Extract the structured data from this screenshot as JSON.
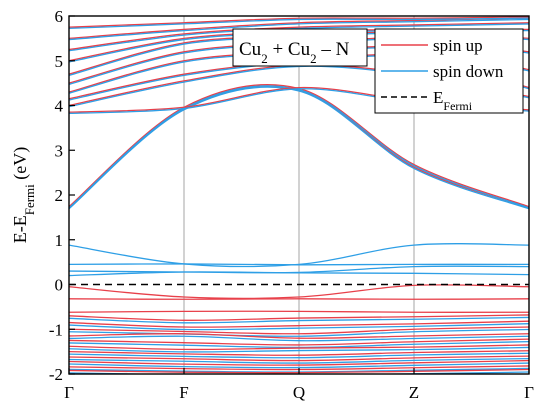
{
  "chart_data": {
    "type": "line",
    "title": "",
    "ylabel": {
      "main": "E-E",
      "sub": "Fermi",
      "unit": " (eV)"
    },
    "ylim": [
      -2,
      6
    ],
    "yticks": [
      -2,
      -1,
      0,
      1,
      2,
      3,
      4,
      5,
      6
    ],
    "xlim": [
      0,
      4
    ],
    "x_ticks": [
      {
        "x": 0,
        "label": "Γ"
      },
      {
        "x": 1,
        "label": "F"
      },
      {
        "x": 2,
        "label": "Q"
      },
      {
        "x": 3,
        "label": "Z"
      },
      {
        "x": 4,
        "label": "Γ"
      }
    ],
    "annotation": {
      "parts": [
        "Cu",
        "2",
        " + Cu",
        "2",
        " – N"
      ]
    },
    "legend": {
      "placement": "top-right",
      "entries": [
        {
          "label": "spin up",
          "sub": "",
          "color": "#e8404a",
          "style": "solid"
        },
        {
          "label": "spin down",
          "sub": "",
          "color": "#2e9fe6",
          "style": "solid"
        },
        {
          "label": "E",
          "sub": "Fermi",
          "color": "#000000",
          "style": "dashed"
        }
      ]
    },
    "fermi_level": 0,
    "series_colors": {
      "spin_up": "#e8404a",
      "spin_down": "#2e9fe6"
    },
    "bands": {
      "both_spins": [
        [
          1.72,
          3.93,
          4.35,
          2.62,
          1.72
        ],
        [
          1.74,
          3.96,
          4.38,
          2.68,
          1.74
        ],
        [
          3.85,
          3.96,
          4.4,
          4.1,
          3.9
        ],
        [
          4.0,
          4.55,
          4.9,
          4.7,
          4.2
        ],
        [
          4.15,
          4.7,
          5.0,
          5.1,
          4.4
        ],
        [
          4.3,
          5.0,
          5.2,
          5.3,
          4.8
        ],
        [
          4.5,
          5.2,
          5.4,
          5.5,
          5.2
        ],
        [
          4.7,
          5.4,
          5.55,
          5.65,
          5.5
        ],
        [
          5.0,
          5.5,
          5.65,
          5.7,
          5.7
        ],
        [
          5.25,
          5.6,
          5.75,
          5.8,
          5.85
        ],
        [
          5.5,
          5.7,
          5.85,
          5.9,
          5.95
        ],
        [
          5.75,
          5.85,
          5.95,
          5.95,
          5.98
        ]
      ],
      "spin_down": [
        [
          0.88,
          0.46,
          0.45,
          0.88,
          0.88
        ],
        [
          0.45,
          0.46,
          0.44,
          0.45,
          0.45
        ],
        [
          0.3,
          0.28,
          0.27,
          0.4,
          0.4
        ],
        [
          0.2,
          0.28,
          0.26,
          0.25,
          0.22
        ]
      ],
      "spin_up": [
        [
          -0.05,
          -0.28,
          -0.28,
          -0.02,
          -0.05
        ],
        [
          -0.32,
          -0.33,
          -0.32,
          -0.33,
          -0.32
        ],
        [
          -0.62,
          -0.6,
          -0.6,
          -0.62,
          -0.62
        ]
      ],
      "valence_both": [
        [
          -0.7,
          -0.8,
          -0.75,
          -0.72,
          -0.68
        ],
        [
          -0.85,
          -0.95,
          -0.92,
          -0.88,
          -0.82
        ],
        [
          -1.0,
          -1.05,
          -1.1,
          -1.0,
          -0.95
        ],
        [
          -1.15,
          -1.1,
          -1.2,
          -1.15,
          -1.1
        ],
        [
          -1.25,
          -1.3,
          -1.35,
          -1.28,
          -1.22
        ],
        [
          -1.38,
          -1.45,
          -1.42,
          -1.4,
          -1.35
        ],
        [
          -1.5,
          -1.55,
          -1.58,
          -1.52,
          -1.48
        ],
        [
          -1.62,
          -1.66,
          -1.7,
          -1.64,
          -1.6
        ],
        [
          -1.72,
          -1.78,
          -1.8,
          -1.75,
          -1.7
        ],
        [
          -1.84,
          -1.88,
          -1.9,
          -1.86,
          -1.82
        ],
        [
          -1.92,
          -1.96,
          -1.97,
          -1.94,
          -1.9
        ]
      ]
    }
  }
}
